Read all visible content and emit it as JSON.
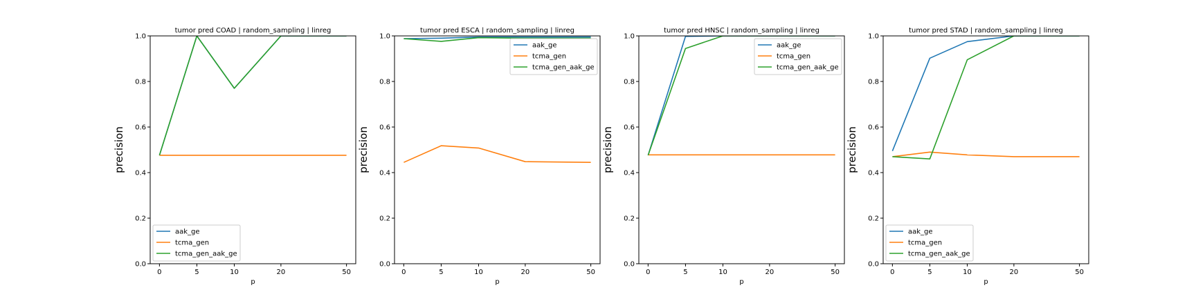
{
  "chart_data": [
    {
      "type": "line",
      "title": "tumor pred COAD | random_sampling | linreg",
      "xlabel": "p",
      "ylabel": "precision",
      "categories": [
        "0",
        "5",
        "10",
        "20",
        "50"
      ],
      "ylim": [
        0.0,
        1.0
      ],
      "yticks": [
        "0.0",
        "0.2",
        "0.4",
        "0.6",
        "0.8",
        "1.0"
      ],
      "grid": false,
      "legend_position": "lower-left",
      "series": [
        {
          "name": "aak_ge",
          "color": "#1f77b4",
          "values": [
            0.476,
            1.0,
            0.77,
            1.0,
            1.0
          ]
        },
        {
          "name": "tcma_gen",
          "color": "#ff7f0e",
          "values": [
            0.476,
            0.476,
            0.476,
            0.476,
            0.476
          ]
        },
        {
          "name": "tcma_gen_aak_ge",
          "color": "#2ca02c",
          "values": [
            0.476,
            1.0,
            0.77,
            1.0,
            1.0
          ]
        }
      ]
    },
    {
      "type": "line",
      "title": "tumor pred ESCA | random_sampling | linreg",
      "xlabel": "p",
      "ylabel": "precision",
      "categories": [
        "0",
        "5",
        "10",
        "20",
        "50"
      ],
      "ylim": [
        0.0,
        1.0
      ],
      "yticks": [
        "0.0",
        "0.2",
        "0.4",
        "0.6",
        "0.8",
        "1.0"
      ],
      "grid": false,
      "legend_position": "upper-right",
      "series": [
        {
          "name": "aak_ge",
          "color": "#1f77b4",
          "values": [
            0.988,
            0.99,
            0.995,
            0.995,
            0.995
          ]
        },
        {
          "name": "tcma_gen",
          "color": "#ff7f0e",
          "values": [
            0.445,
            0.518,
            0.508,
            0.448,
            0.445
          ]
        },
        {
          "name": "tcma_gen_aak_ge",
          "color": "#2ca02c",
          "values": [
            0.988,
            0.976,
            0.992,
            0.99,
            0.99
          ]
        }
      ]
    },
    {
      "type": "line",
      "title": "tumor pred HNSC | random_sampling | linreg",
      "xlabel": "p",
      "ylabel": "precision",
      "categories": [
        "0",
        "5",
        "10",
        "20",
        "50"
      ],
      "ylim": [
        0.0,
        1.0
      ],
      "yticks": [
        "0.0",
        "0.2",
        "0.4",
        "0.6",
        "0.8",
        "1.0"
      ],
      "grid": false,
      "legend_position": "upper-right",
      "series": [
        {
          "name": "aak_ge",
          "color": "#1f77b4",
          "values": [
            0.476,
            0.998,
            1.0,
            1.0,
            1.0
          ]
        },
        {
          "name": "tcma_gen",
          "color": "#ff7f0e",
          "values": [
            0.478,
            0.478,
            0.478,
            0.478,
            0.478
          ]
        },
        {
          "name": "tcma_gen_aak_ge",
          "color": "#2ca02c",
          "values": [
            0.476,
            0.945,
            1.0,
            1.0,
            1.0
          ]
        }
      ]
    },
    {
      "type": "line",
      "title": "tumor pred STAD | random_sampling | linreg",
      "xlabel": "p",
      "ylabel": "precision",
      "categories": [
        "0",
        "5",
        "10",
        "20",
        "50"
      ],
      "ylim": [
        0.0,
        1.0
      ],
      "yticks": [
        "0.0",
        "0.2",
        "0.4",
        "0.6",
        "0.8",
        "1.0"
      ],
      "grid": false,
      "legend_position": "lower-left",
      "series": [
        {
          "name": "aak_ge",
          "color": "#1f77b4",
          "values": [
            0.495,
            0.902,
            0.975,
            1.0,
            1.0
          ]
        },
        {
          "name": "tcma_gen",
          "color": "#ff7f0e",
          "values": [
            0.47,
            0.49,
            0.478,
            0.47,
            0.47
          ]
        },
        {
          "name": "tcma_gen_aak_ge",
          "color": "#2ca02c",
          "values": [
            0.47,
            0.46,
            0.895,
            1.0,
            1.0
          ]
        }
      ]
    }
  ]
}
